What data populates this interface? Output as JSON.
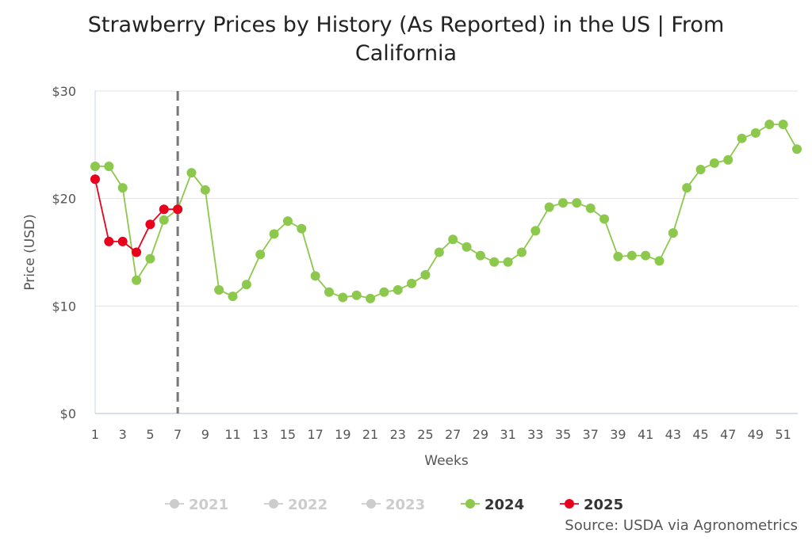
{
  "chart_data": {
    "type": "line",
    "title": "Strawberry Prices by History (As Reported) in the US | From California",
    "xlabel": "Weeks",
    "ylabel": "Price (USD)",
    "xlim": [
      1,
      52
    ],
    "ylim": [
      0,
      30
    ],
    "y_ticks": [
      "$0",
      "$10",
      "$20",
      "$30"
    ],
    "y_tick_values": [
      0,
      10,
      20,
      30
    ],
    "x_ticks": [
      "1",
      "3",
      "5",
      "7",
      "9",
      "11",
      "13",
      "15",
      "17",
      "19",
      "21",
      "23",
      "25",
      "27",
      "29",
      "31",
      "33",
      "35",
      "37",
      "39",
      "41",
      "43",
      "45",
      "47",
      "49",
      "51"
    ],
    "current_week_marker": 7,
    "grid": true,
    "legend_position": "bottom",
    "series": [
      {
        "name": "2021",
        "color": "#cccccc",
        "visible": false,
        "x": [],
        "values": []
      },
      {
        "name": "2022",
        "color": "#cccccc",
        "visible": false,
        "x": [],
        "values": []
      },
      {
        "name": "2023",
        "color": "#cccccc",
        "visible": false,
        "x": [],
        "values": []
      },
      {
        "name": "2024",
        "color": "#8cc84b",
        "visible": true,
        "x": [
          1,
          2,
          3,
          4,
          5,
          6,
          7,
          8,
          9,
          10,
          11,
          12,
          13,
          14,
          15,
          16,
          17,
          18,
          19,
          20,
          21,
          22,
          23,
          24,
          25,
          26,
          27,
          28,
          29,
          30,
          31,
          32,
          33,
          34,
          35,
          36,
          37,
          38,
          39,
          40,
          41,
          42,
          43,
          44,
          45,
          46,
          47,
          48,
          49,
          50,
          51,
          52
        ],
        "values": [
          23,
          23,
          21,
          12.4,
          14.4,
          18,
          19,
          22.4,
          20.8,
          11.5,
          10.9,
          12,
          14.8,
          16.7,
          17.9,
          17.2,
          12.8,
          11.3,
          10.8,
          11,
          10.7,
          11.3,
          11.5,
          12.1,
          12.9,
          15,
          16.2,
          15.5,
          14.7,
          14.1,
          14.1,
          15,
          17,
          19.2,
          19.6,
          19.6,
          19.1,
          18.1,
          14.6,
          14.7,
          14.7,
          14.2,
          16.8,
          21,
          22.7,
          23.3,
          23.6,
          25.6,
          26.1,
          26.9,
          26.9,
          24.6
        ]
      },
      {
        "name": "2025",
        "color": "#e8001c",
        "visible": true,
        "x": [
          1,
          2,
          3,
          4,
          5,
          6,
          7
        ],
        "values": [
          21.8,
          16,
          16,
          15,
          17.6,
          19,
          19
        ]
      }
    ]
  },
  "source_note": "Source: USDA via Agronometrics"
}
